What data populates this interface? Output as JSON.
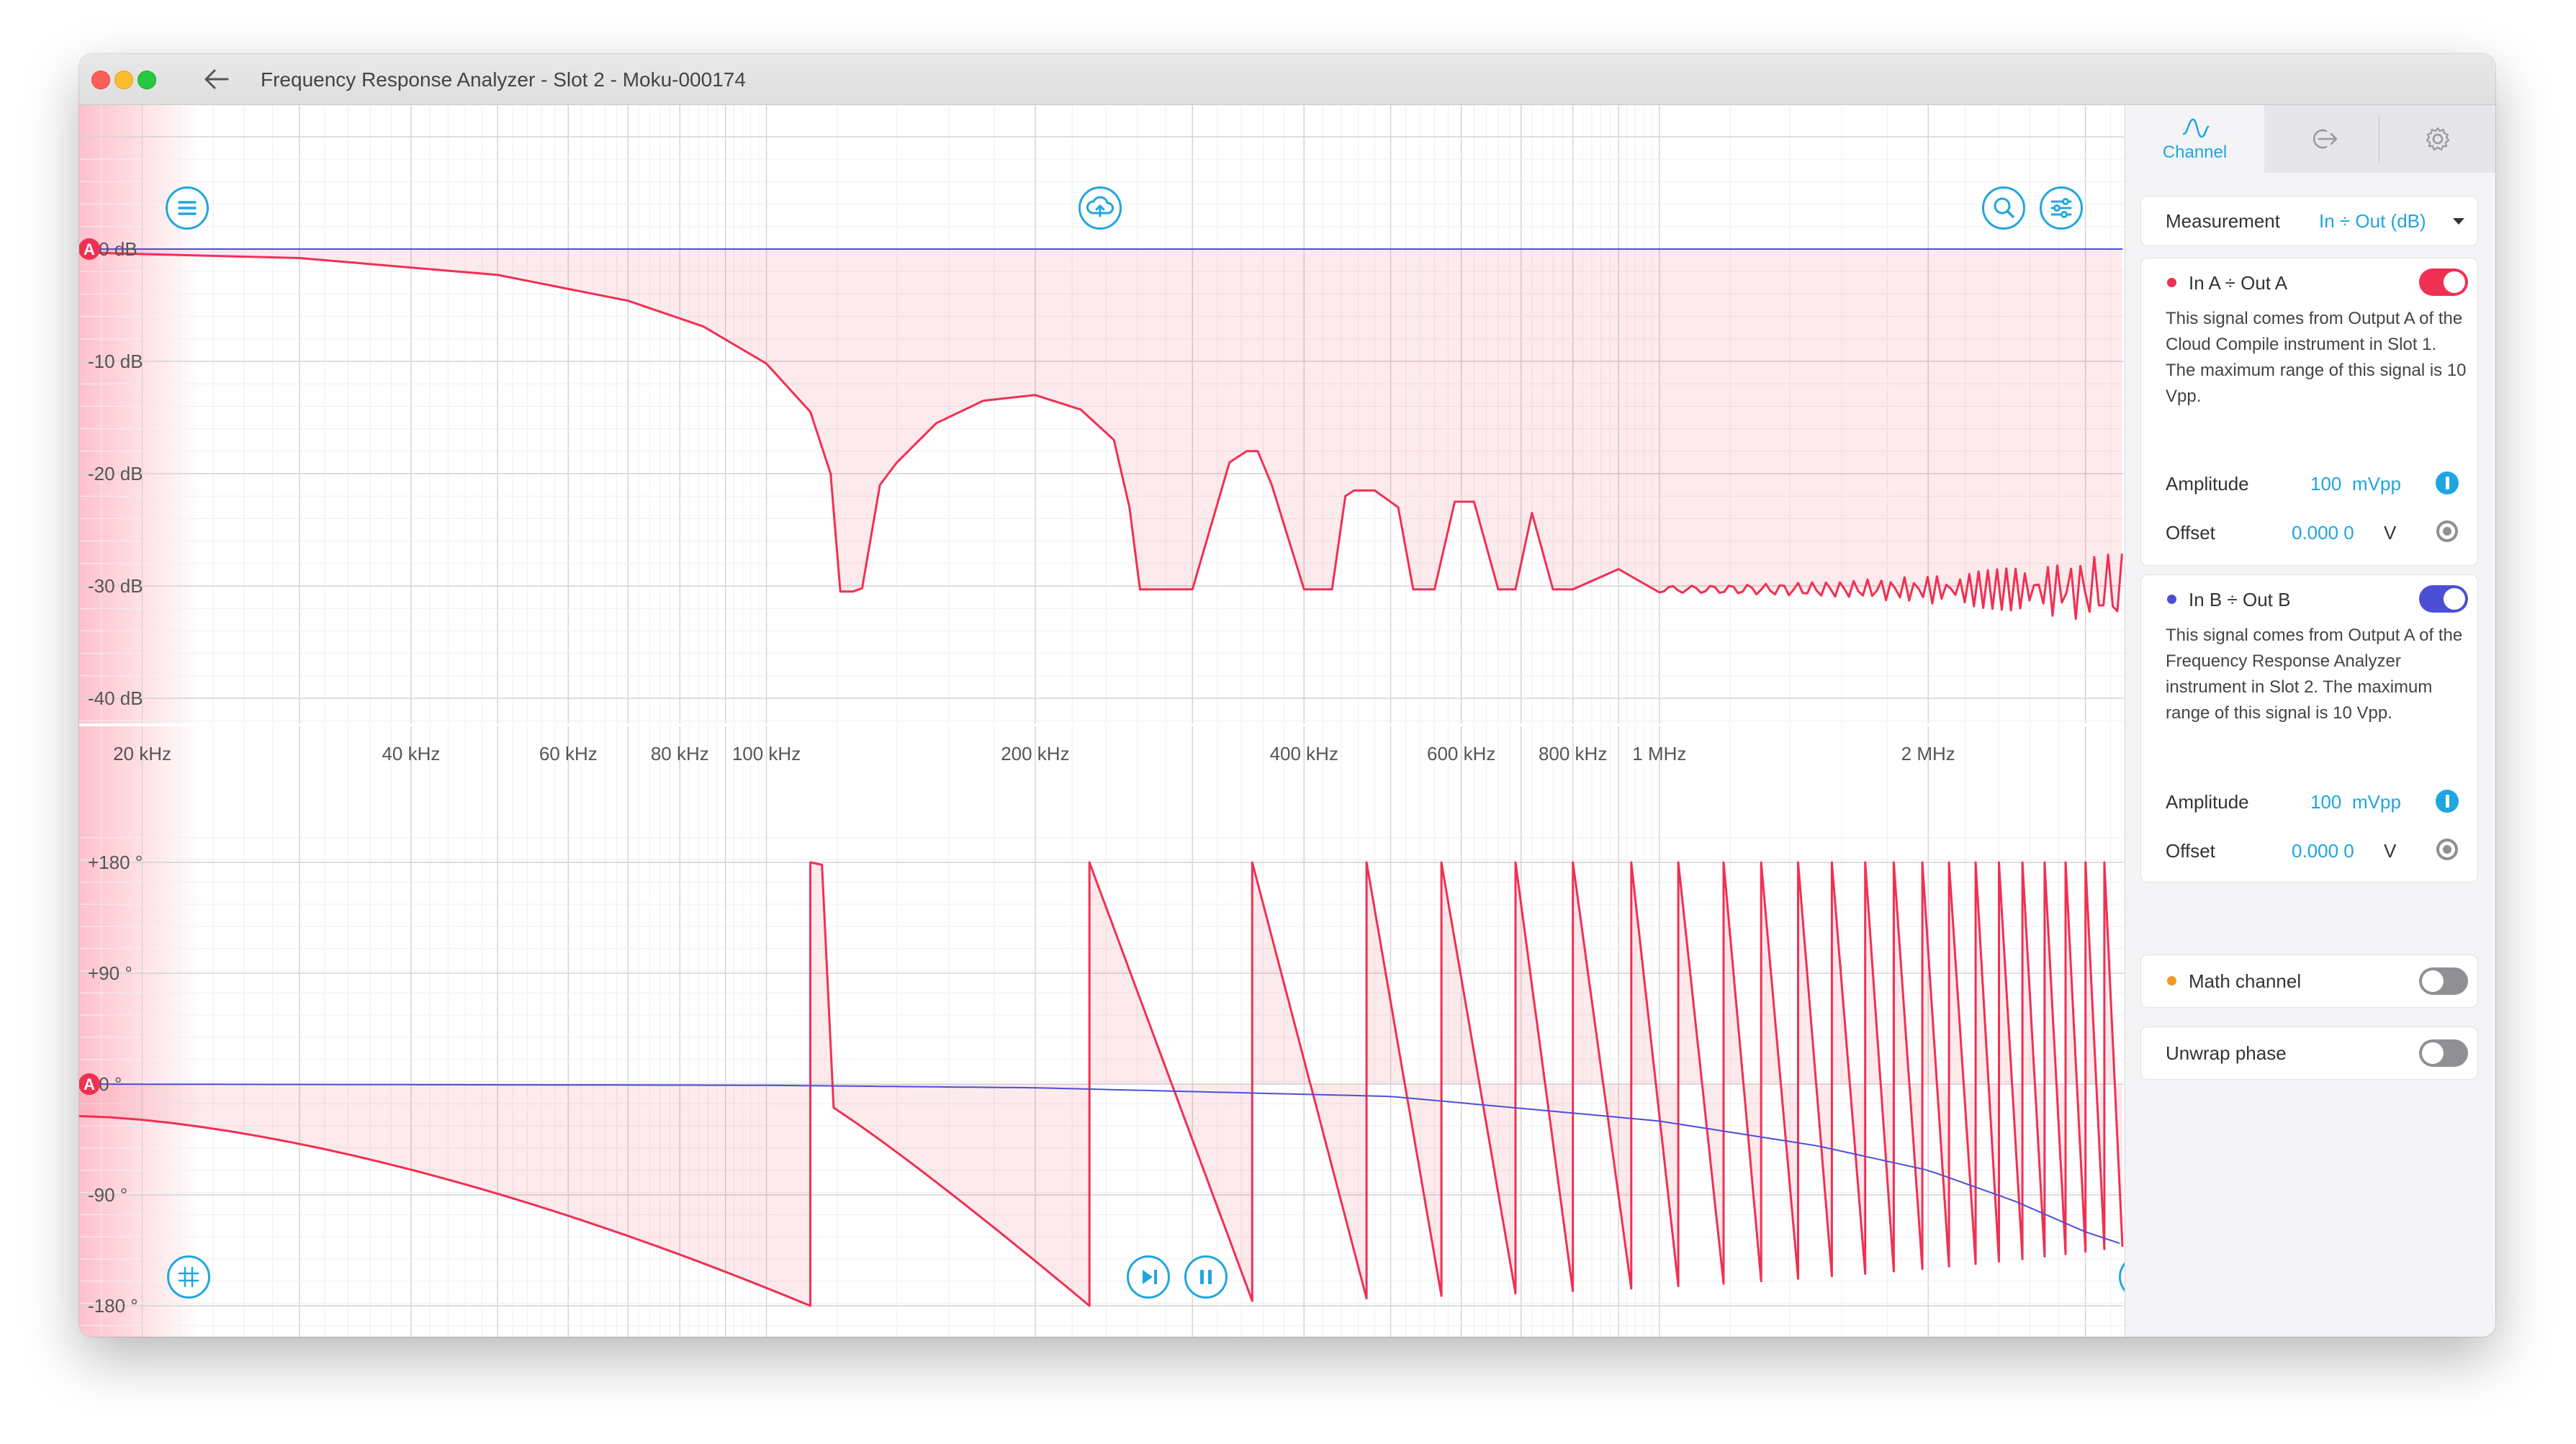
{
  "window": {
    "title": "Frequency Response Analyzer - Slot 2 - Moku-000174"
  },
  "colors": {
    "accent": "#20a6df",
    "channel_a": "#f03052",
    "channel_b": "#4c4fd6",
    "math": "#f29a1d",
    "grid": "#e4e4e4"
  },
  "toolbar": {
    "icons": [
      "menu-icon",
      "cloud-upload-icon",
      "zoom-icon",
      "sliders-icon",
      "grid-icon",
      "step-icon",
      "pause-icon",
      "cursor-icon"
    ]
  },
  "chart_data": [
    {
      "type": "line",
      "title": "",
      "x_scale": "log",
      "x_ticks": [
        "20 kHz",
        "40 kHz",
        "60 kHz",
        "80 kHz",
        "100 kHz",
        "200 kHz",
        "400 kHz",
        "600 kHz",
        "800 kHz",
        "1 MHz",
        "2 MHz"
      ],
      "y_ticks": [
        "+0 dB",
        "-10 dB",
        "-20 dB",
        "-30 dB",
        "-40 dB"
      ],
      "ylim": [
        -44,
        2
      ],
      "xlim_hz": [
        17000,
        3300000
      ],
      "reference_marker": "A",
      "grid": true,
      "series": [
        {
          "color": "#f03052",
          "x": [
            17000,
            30000,
            50000,
            70000,
            85000,
            100000,
            112000,
            118000,
            121000,
            125000,
            128000,
            134000,
            140000,
            155000,
            175000,
            200000,
            225000,
            245000,
            255000,
            262000,
            275000,
            300000,
            330000,
            345000,
            355000,
            368000,
            400000,
            430000,
            445000,
            455000,
            480000,
            510000,
            530000,
            540000,
            560000,
            590000,
            620000,
            660000,
            690000,
            720000,
            760000,
            800000,
            900000,
            1000000,
            1500000,
            2000000,
            2500000,
            3000000,
            3300000
          ],
          "y": [
            -0.3,
            -0.8,
            -2.3,
            -4.6,
            -6.9,
            -10.2,
            -14.5,
            -20,
            -30.5,
            -30.5,
            -30.2,
            -21,
            -19,
            -15.5,
            -13.5,
            -13,
            -14.3,
            -17,
            -23,
            -30.3,
            -30.3,
            -30.3,
            -19,
            -18,
            -18,
            -21,
            -30.3,
            -30.3,
            -22,
            -21.5,
            -21.5,
            -23,
            -30.3,
            -30.3,
            -30.3,
            -22.5,
            -22.5,
            -30.3,
            -30.3,
            -23.5,
            -30.3,
            -30.3,
            -28.5,
            -30.3,
            -30.3,
            -30.3,
            -30.5,
            -31,
            -31
          ]
        },
        {
          "color": "#4c4fd6",
          "x": [
            17000,
            3300000
          ],
          "y": [
            0,
            0
          ]
        }
      ]
    },
    {
      "type": "line",
      "title": "",
      "x_scale": "log",
      "x_ticks": [
        "20 kHz",
        "40 kHz",
        "60 kHz",
        "80 kHz",
        "100 kHz",
        "200 kHz",
        "400 kHz",
        "600 kHz",
        "800 kHz",
        "1 MHz",
        "2 MHz"
      ],
      "y_ticks": [
        "+180 °",
        "+90 °",
        "+0 °",
        "-90 °",
        "-180 °"
      ],
      "ylim": [
        -200,
        200
      ],
      "xlim_hz": [
        17000,
        3300000
      ],
      "reference_marker": "A",
      "grid": true,
      "phase_series": {
        "color": "#f03052",
        "phase_at_17khz_deg": -26,
        "wrap_frequencies_hz": [
          112000,
          230000,
          350000,
          470000,
          570000,
          690000,
          800000,
          930000,
          1050000,
          1180000,
          1300000,
          1430000,
          1560000,
          1700000,
          1830000,
          1970000,
          2110000,
          2260000,
          2400000,
          2550000,
          2700000,
          2850000,
          3000000,
          3150000
        ],
        "min_deg": -180,
        "max_deg": 180
      },
      "reference_series": {
        "color": "#4c4fd6",
        "x": [
          17000,
          100000,
          200000,
          500000,
          1000000,
          1500000,
          2000000,
          2500000,
          3000000,
          3300000
        ],
        "y": [
          0,
          -1,
          -3,
          -10,
          -30,
          -50,
          -70,
          -95,
          -120,
          -130
        ]
      }
    }
  ],
  "sidebar": {
    "tabs": [
      {
        "label": "Channel",
        "icon": "waveform-icon"
      },
      {
        "label": "",
        "icon": "output-icon"
      },
      {
        "label": "",
        "icon": "gear-icon"
      }
    ],
    "measurement": {
      "label": "Measurement",
      "value": "In ÷ Out (dB)"
    },
    "channel_a": {
      "title": "In A ÷ Out A",
      "enabled": true,
      "description": "This signal comes from Output A of the Cloud Compile instrument in Slot 1. The maximum range of this signal is 10 Vpp.",
      "amplitude_label": "Amplitude",
      "amplitude_value": "100",
      "amplitude_unit": "mVpp",
      "offset_label": "Offset",
      "offset_value": "0.000 0",
      "offset_unit": "V"
    },
    "channel_b": {
      "title": "In B ÷ Out B",
      "enabled": true,
      "description": "This signal comes from Output A of the Frequency Response Analyzer instrument in Slot 2. The maximum range of this signal is 10 Vpp.",
      "amplitude_label": "Amplitude",
      "amplitude_value": "100",
      "amplitude_unit": "mVpp",
      "offset_label": "Offset",
      "offset_value": "0.000 0",
      "offset_unit": "V"
    },
    "math_channel": {
      "label": "Math channel",
      "enabled": false
    },
    "unwrap_phase": {
      "label": "Unwrap phase",
      "enabled": false
    }
  }
}
